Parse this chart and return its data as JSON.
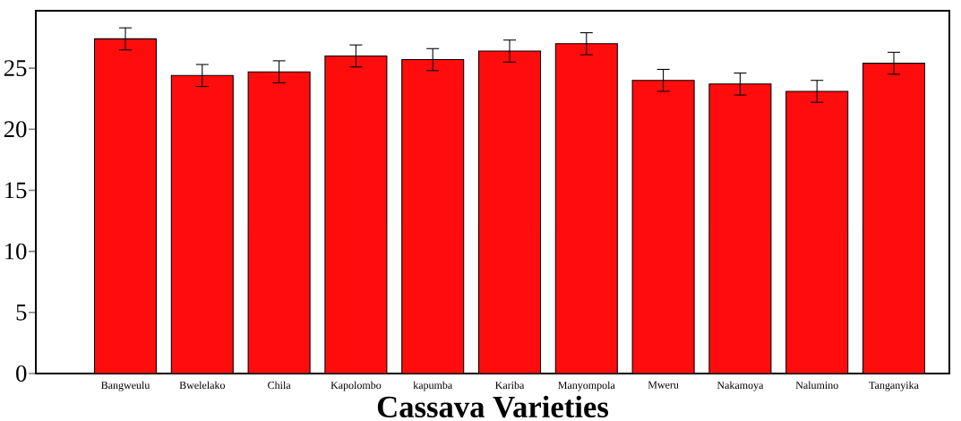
{
  "chart_data": {
    "type": "bar",
    "xlabel": "Cassava Varieties",
    "categories": [
      "Bangweulu",
      "Bwelelako",
      "Chila",
      "Kapolombo",
      "kapumba",
      "Kariba",
      "Manyompola",
      "Mweru",
      "Nakamoya",
      "Nalumino",
      "Tanganyika"
    ],
    "values": [
      27.4,
      24.4,
      24.7,
      26.0,
      25.7,
      26.4,
      27.0,
      24.0,
      23.7,
      23.1,
      25.4
    ],
    "errors": [
      0.9,
      0.9,
      0.9,
      0.9,
      0.9,
      0.9,
      0.9,
      0.9,
      0.9,
      0.9,
      0.9
    ],
    "color": "#ff0d0d",
    "ylim": [
      0,
      29.7
    ],
    "yticks": [
      0,
      5,
      10,
      15,
      20,
      25
    ],
    "grid": false
  }
}
